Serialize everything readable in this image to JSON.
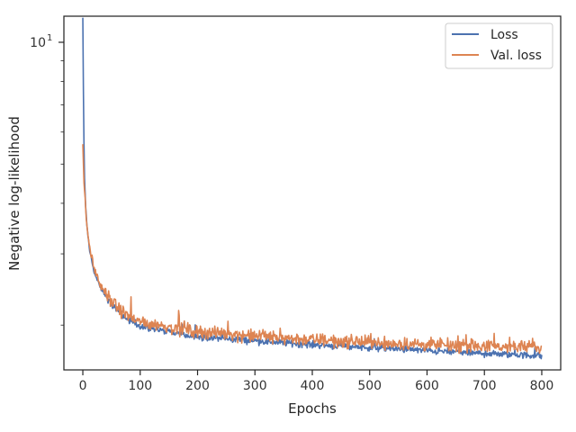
{
  "chart_data": {
    "type": "line",
    "title": "",
    "xlabel": "Epochs",
    "ylabel": "Negative log-likelihood",
    "yscale": "log",
    "xlim": [
      -33,
      833
    ],
    "ylim": [
      1.55,
      11.6
    ],
    "grid": false,
    "legend_position": "top-right",
    "x_ticks": [
      0,
      100,
      200,
      300,
      400,
      500,
      600,
      700,
      800
    ],
    "x_tick_labels": [
      "0",
      "100",
      "200",
      "300",
      "400",
      "500",
      "600",
      "700",
      "800"
    ],
    "y_ticks": [
      10
    ],
    "y_tick_base": "10",
    "y_tick_exponent": "1",
    "x_end": 800,
    "series": [
      {
        "name": "Loss",
        "color": "#4c72b0",
        "noise": 0.016,
        "anchors": [
          [
            0,
            11.5
          ],
          [
            1,
            7.6
          ],
          [
            2,
            5.6
          ],
          [
            3,
            4.6
          ],
          [
            5,
            3.9
          ],
          [
            8,
            3.4
          ],
          [
            12,
            3.05
          ],
          [
            20,
            2.7
          ],
          [
            30,
            2.48
          ],
          [
            50,
            2.25
          ],
          [
            75,
            2.08
          ],
          [
            100,
            1.99
          ],
          [
            150,
            1.92
          ],
          [
            200,
            1.87
          ],
          [
            300,
            1.83
          ],
          [
            400,
            1.79
          ],
          [
            500,
            1.76
          ],
          [
            600,
            1.73
          ],
          [
            700,
            1.7
          ],
          [
            800,
            1.68
          ]
        ]
      },
      {
        "name": "Val. loss",
        "color": "#dd8452",
        "noise": 0.03,
        "anchors": [
          [
            0,
            5.6
          ],
          [
            2,
            4.5
          ],
          [
            5,
            3.9
          ],
          [
            8,
            3.4
          ],
          [
            12,
            3.1
          ],
          [
            20,
            2.75
          ],
          [
            30,
            2.52
          ],
          [
            50,
            2.28
          ],
          [
            75,
            2.12
          ],
          [
            100,
            2.04
          ],
          [
            150,
            1.98
          ],
          [
            200,
            1.93
          ],
          [
            300,
            1.88
          ],
          [
            400,
            1.84
          ],
          [
            500,
            1.81
          ],
          [
            600,
            1.79
          ],
          [
            700,
            1.77
          ],
          [
            800,
            1.76
          ]
        ]
      }
    ]
  }
}
